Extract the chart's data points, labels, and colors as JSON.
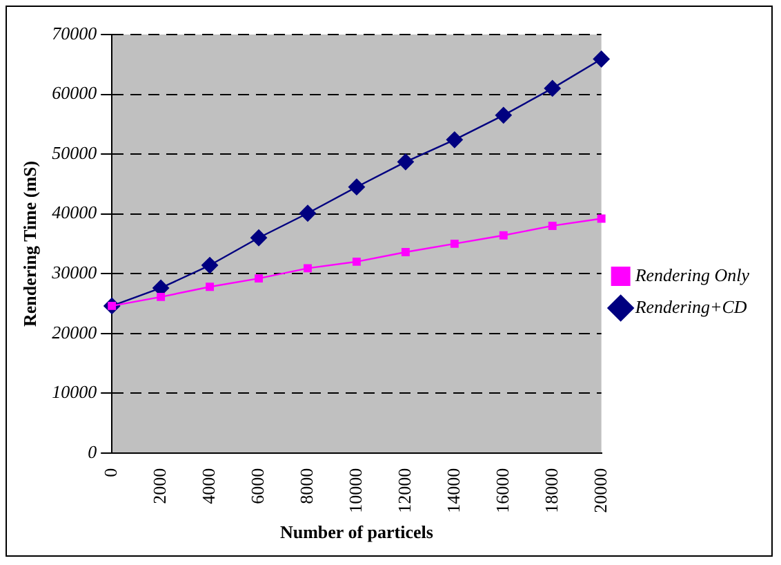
{
  "chart_data": {
    "type": "line",
    "xlabel": "Number of particels",
    "ylabel": "Rendering Time (mS)",
    "categories": [
      "0",
      "2000",
      "4000",
      "6000",
      "8000",
      "10000",
      "12000",
      "14000",
      "16000",
      "18000",
      "20000"
    ],
    "series": [
      {
        "name": "Rendering+CD",
        "color": "#000080",
        "marker": "diamond",
        "values": [
          24600,
          27600,
          31400,
          36000,
          40100,
          44500,
          48700,
          52400,
          56500,
          61000,
          65900
        ]
      },
      {
        "name": "Rendering Only",
        "color": "#ff00ff",
        "marker": "square",
        "values": [
          24600,
          26100,
          27800,
          29200,
          30900,
          32000,
          33600,
          35000,
          36400,
          38000,
          39200
        ]
      }
    ],
    "ylim": [
      0,
      70000
    ],
    "yticks": [
      0,
      10000,
      20000,
      30000,
      40000,
      50000,
      60000,
      70000
    ],
    "grid": "y",
    "legend": "right",
    "line_style": "solid"
  }
}
